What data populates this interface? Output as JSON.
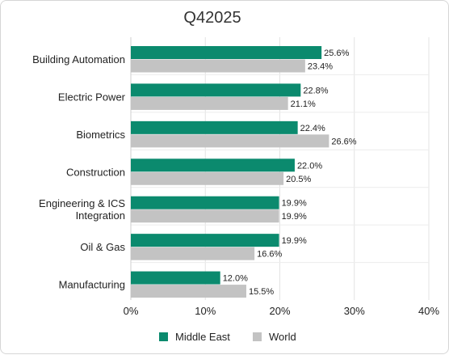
{
  "chart_data": {
    "type": "bar",
    "orientation": "horizontal",
    "title": "Q42025",
    "categories": [
      [
        "Building Automation"
      ],
      [
        "Electric Power"
      ],
      [
        "Biometrics"
      ],
      [
        "Construction"
      ],
      [
        "Engineering & ICS",
        "Integration"
      ],
      [
        "Oil & Gas"
      ],
      [
        "Manufacturing"
      ]
    ],
    "series": [
      {
        "name": "Middle East",
        "color": "#0b8a6e",
        "values": [
          25.6,
          22.8,
          22.4,
          22.0,
          19.9,
          19.9,
          12.0
        ],
        "labels": [
          "25.6%",
          "22.8%",
          "22.4%",
          "22.0%",
          "19.9%",
          "19.9%",
          "12.0%"
        ]
      },
      {
        "name": "World",
        "color": "#c3c3c3",
        "values": [
          23.4,
          21.1,
          26.6,
          20.5,
          19.9,
          16.6,
          15.5
        ],
        "labels": [
          "23.4%",
          "21.1%",
          "26.6%",
          "20.5%",
          "19.9%",
          "16.6%",
          "15.5%"
        ]
      }
    ],
    "xlim": [
      0,
      40
    ],
    "xticks": [
      0,
      10,
      20,
      30,
      40
    ],
    "xtick_labels": [
      "0%",
      "10%",
      "20%",
      "30%",
      "40%"
    ],
    "grid": "vertical",
    "legend_position": "bottom"
  }
}
